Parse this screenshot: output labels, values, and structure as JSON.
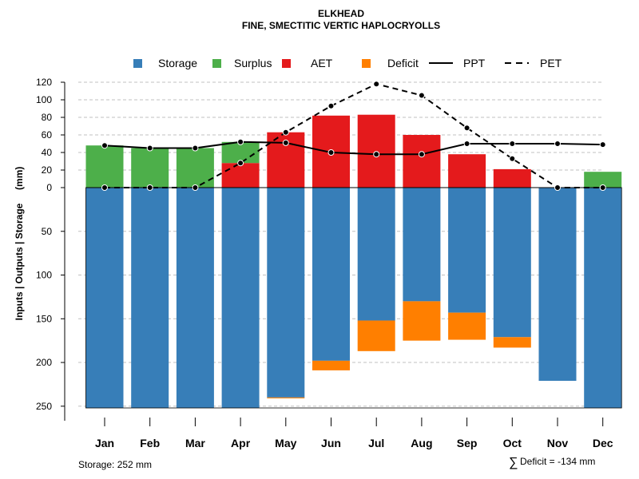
{
  "chart_data": {
    "type": "bar",
    "title": "ELKHEAD",
    "subtitle": "FINE, SMECTITIC VERTIC HAPLOCRYOLLS",
    "ylabel": "Inputs | Outputs | Storage     (mm)",
    "categories": [
      "Jan",
      "Feb",
      "Mar",
      "Apr",
      "May",
      "Jun",
      "Jul",
      "Aug",
      "Sep",
      "Oct",
      "Nov",
      "Dec"
    ],
    "upper_ticks": [
      "0",
      "20",
      "40",
      "60",
      "80",
      "100",
      "120"
    ],
    "lower_ticks": [
      "50",
      "100",
      "150",
      "200",
      "250"
    ],
    "ylim_upper": [
      0,
      120
    ],
    "ylim_lower": [
      0,
      252
    ],
    "series": [
      {
        "name": "Storage",
        "color": "#377EB8",
        "values": [
          252,
          252,
          252,
          252,
          240,
          198,
          152,
          130,
          143,
          171,
          221,
          252
        ]
      },
      {
        "name": "Surplus",
        "color": "#4DAF4A",
        "values": [
          48,
          45,
          45,
          24,
          0,
          0,
          0,
          0,
          0,
          0,
          0,
          18
        ]
      },
      {
        "name": "AET",
        "color": "#E41A1C",
        "values": [
          0,
          0,
          0,
          28,
          63,
          82,
          83,
          60,
          38,
          21,
          0,
          0
        ]
      },
      {
        "name": "Deficit",
        "color": "#FF7F00",
        "values": [
          0,
          0,
          0,
          0,
          1,
          11,
          35,
          45,
          31,
          12,
          0,
          0
        ]
      },
      {
        "name": "PPT",
        "color": "#000000",
        "values": [
          48,
          45,
          45,
          52,
          51,
          40,
          38,
          38,
          50,
          50,
          50,
          49
        ]
      },
      {
        "name": "PET",
        "color": "#000000",
        "values": [
          0,
          0,
          0,
          28,
          63,
          93,
          118,
          105,
          68,
          33,
          0,
          0
        ]
      }
    ],
    "legend": [
      {
        "label": "Storage",
        "kind": "box",
        "color": "#377EB8"
      },
      {
        "label": "Surplus",
        "kind": "box",
        "color": "#4DAF4A"
      },
      {
        "label": "AET",
        "kind": "box",
        "color": "#E41A1C"
      },
      {
        "label": "Deficit",
        "kind": "box",
        "color": "#FF7F00"
      },
      {
        "label": "PPT",
        "kind": "solid",
        "color": "#000000"
      },
      {
        "label": "PET",
        "kind": "dashed",
        "color": "#000000"
      }
    ],
    "legend_position": "top",
    "grid": true
  },
  "footer": {
    "storage_note": "Storage: 252 mm",
    "deficit_symbol": "∑",
    "deficit_note": "Deficit = -134 mm"
  }
}
